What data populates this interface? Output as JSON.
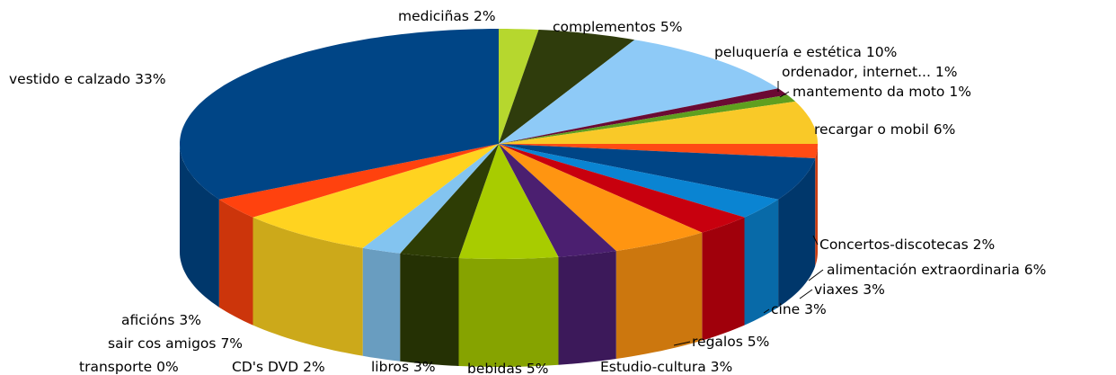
{
  "chart_data": {
    "type": "pie3d",
    "categories": [
      "mediciñas",
      "complementos",
      "peluquería e estética",
      "ordenador, internet...",
      "mantemento da moto",
      "recargar o mobil",
      "Concertos-discotecas",
      "alimentación extraordinaria",
      "viaxes",
      "cine",
      "regalos",
      "Estudio-cultura",
      "bebidas",
      "libros",
      "CD's DVD",
      "transporte",
      "sair cos amigos",
      "aficións",
      "vestido e calzado"
    ],
    "values": [
      2,
      5,
      10,
      1,
      1,
      6,
      2,
      6,
      3,
      3,
      5,
      3,
      5,
      3,
      2,
      0,
      7,
      3,
      33
    ],
    "value_labels": [
      "2%",
      "5%",
      "10%",
      "1%",
      "1%",
      "6%",
      "2%",
      "6%",
      "3%",
      "3%",
      "5%",
      "3%",
      "5%",
      "3%",
      "2%",
      "0%",
      "7%",
      "3%",
      "33%"
    ],
    "colors": [
      "#b6d72e",
      "#2f3c0c",
      "#8ecaf7",
      "#6b0a33",
      "#5f9f1f",
      "#f9c928",
      "#ff4b14",
      "#004586",
      "#0a84d2",
      "#c8000e",
      "#ff9511",
      "#4b1f70",
      "#a8cc00",
      "#2e3d05",
      "#83c4f0",
      "#579d1c",
      "#ffd320",
      "#ff420e",
      "#004586"
    ]
  }
}
